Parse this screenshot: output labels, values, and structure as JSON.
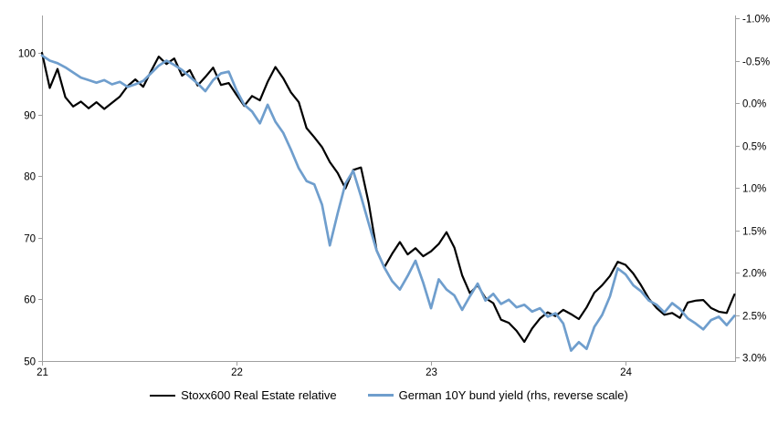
{
  "chart_data": {
    "type": "line",
    "title": "",
    "x_axis": {
      "tick_labels": [
        "21",
        "22",
        "23",
        "24"
      ],
      "tick_values": [
        21,
        22,
        23,
        24
      ],
      "range": [
        21,
        24.56
      ]
    },
    "left_axis": {
      "tick_labels": [
        "50",
        "60",
        "70",
        "80",
        "90",
        "100"
      ],
      "tick_values": [
        50,
        60,
        70,
        80,
        90,
        100
      ],
      "range": [
        50,
        100
      ]
    },
    "right_axis": {
      "tick_labels": [
        "-1.0%",
        "-0.5%",
        "0.0%",
        "0.5%",
        "1.0%",
        "1.5%",
        "2.0%",
        "2.5%",
        "3.0%"
      ],
      "tick_values": [
        -1.0,
        -0.5,
        0.0,
        0.5,
        1.0,
        1.5,
        2.0,
        2.5,
        3.0
      ],
      "reversed": true,
      "range": [
        -1.0,
        3.0
      ]
    },
    "grid": "off",
    "legend_position": "bottom",
    "axis_color": "#a0a0a0",
    "label_color": "#000000",
    "x": [
      21,
      21.04,
      21.08,
      21.12,
      21.16,
      21.2,
      21.24,
      21.28,
      21.32,
      21.36,
      21.4,
      21.44,
      21.48,
      21.52,
      21.56,
      21.6,
      21.64,
      21.68,
      21.72,
      21.76,
      21.8,
      21.84,
      21.88,
      21.92,
      21.96,
      22,
      22.04,
      22.08,
      22.12,
      22.16,
      22.2,
      22.24,
      22.28,
      22.32,
      22.36,
      22.4,
      22.44,
      22.48,
      22.52,
      22.56,
      22.6,
      22.64,
      22.68,
      22.72,
      22.76,
      22.8,
      22.84,
      22.88,
      22.92,
      22.96,
      23,
      23.04,
      23.08,
      23.12,
      23.16,
      23.2,
      23.24,
      23.28,
      23.32,
      23.36,
      23.4,
      23.44,
      23.48,
      23.52,
      23.56,
      23.6,
      23.64,
      23.68,
      23.72,
      23.76,
      23.8,
      23.84,
      23.88,
      23.92,
      23.96,
      24,
      24.04,
      24.08,
      24.12,
      24.16,
      24.2,
      24.24,
      24.28,
      24.32,
      24.36,
      24.4,
      24.44,
      24.48,
      24.52,
      24.56
    ],
    "series": [
      {
        "name": "Stoxx600 Real Estate relative",
        "axis": "left",
        "color": "#000000",
        "values": [
          100,
          94.3,
          97.4,
          92.8,
          91.3,
          92.1,
          91,
          92,
          90.9,
          91.9,
          92.9,
          94.6,
          95.7,
          94.5,
          97,
          99.4,
          98.2,
          99.1,
          96.3,
          97.2,
          94.7,
          96.1,
          97.6,
          94.8,
          95.1,
          93.2,
          91.4,
          93,
          92.3,
          95.3,
          97.7,
          95.9,
          93.6,
          92,
          87.8,
          86.3,
          84.7,
          82.3,
          80.5,
          78,
          81,
          81.4,
          75.6,
          68,
          65.2,
          67.4,
          69.3,
          67.3,
          68.3,
          67,
          67.8,
          69,
          70.9,
          68.4,
          63.9,
          61,
          62.3,
          60.2,
          59.4,
          56.7,
          56.2,
          54.9,
          53.1,
          55.3,
          56.9,
          57.9,
          57.3,
          58.3,
          57.6,
          56.8,
          58.7,
          61.1,
          62.3,
          63.8,
          66.1,
          65.6,
          64.2,
          62.3,
          60.1,
          58.6,
          57.5,
          57.8,
          57,
          59.5,
          59.8,
          59.9,
          58.6,
          58,
          57.8,
          60.8
        ]
      },
      {
        "name": "German 10Y bund yield (rhs, reverse scale)",
        "axis": "right",
        "color": "#6f9ecd",
        "values": [
          -0.56,
          -0.5,
          -0.47,
          -0.42,
          -0.36,
          -0.3,
          -0.27,
          -0.24,
          -0.27,
          -0.22,
          -0.25,
          -0.19,
          -0.22,
          -0.26,
          -0.35,
          -0.44,
          -0.5,
          -0.45,
          -0.39,
          -0.31,
          -0.23,
          -0.14,
          -0.27,
          -0.35,
          -0.37,
          -0.15,
          0.02,
          0.1,
          0.24,
          0.02,
          0.22,
          0.35,
          0.55,
          0.77,
          0.92,
          0.96,
          1.2,
          1.68,
          1.3,
          0.95,
          0.8,
          1.1,
          1.42,
          1.74,
          1.94,
          2.1,
          2.2,
          2.04,
          1.86,
          2.12,
          2.42,
          2.08,
          2.2,
          2.27,
          2.44,
          2.28,
          2.13,
          2.33,
          2.25,
          2.37,
          2.32,
          2.41,
          2.38,
          2.46,
          2.42,
          2.52,
          2.48,
          2.6,
          2.92,
          2.82,
          2.9,
          2.64,
          2.5,
          2.28,
          1.95,
          2.02,
          2.15,
          2.22,
          2.33,
          2.38,
          2.47,
          2.36,
          2.43,
          2.54,
          2.6,
          2.67,
          2.56,
          2.52,
          2.62,
          2.51
        ]
      }
    ]
  }
}
